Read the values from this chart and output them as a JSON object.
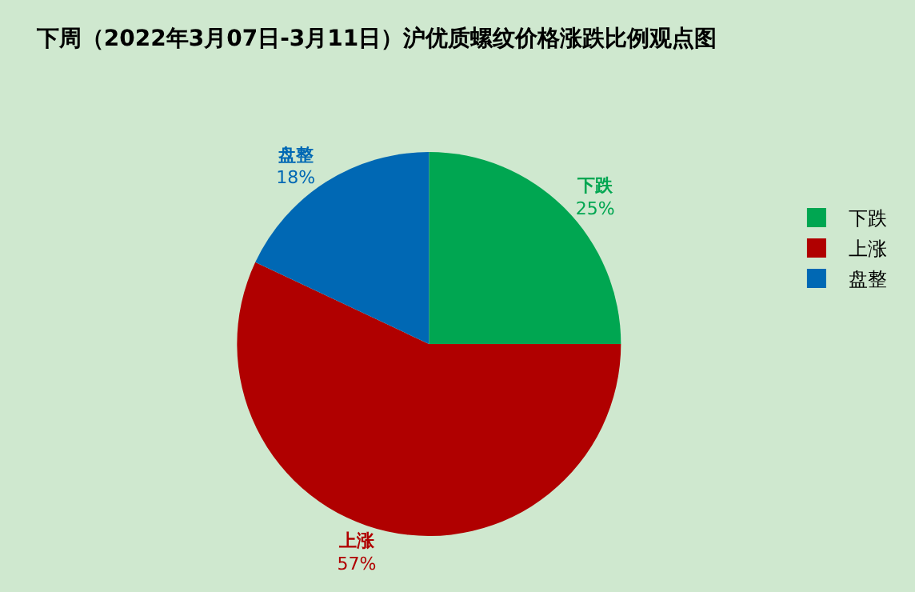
{
  "chart_data": {
    "type": "pie",
    "title": "下周（2022年3月07日-3月11日）沪优质螺纹价格涨跌比例观点图",
    "categories": [
      "下跌",
      "上涨",
      "盘整"
    ],
    "values": [
      25,
      57,
      18
    ],
    "colors": [
      "#00a651",
      "#b00000",
      "#0068b4"
    ],
    "value_labels": [
      "25%",
      "57%",
      "18%"
    ],
    "legend": "right"
  }
}
